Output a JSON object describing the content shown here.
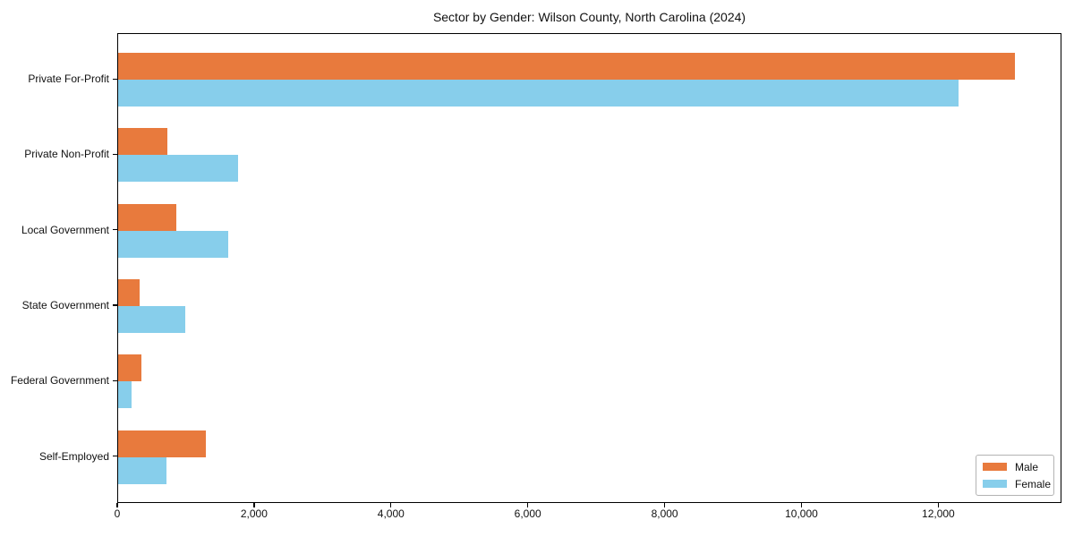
{
  "chart_data": {
    "type": "bar",
    "orientation": "horizontal",
    "title": "Sector by Gender: Wilson County, North Carolina (2024)",
    "categories": [
      "Private For-Profit",
      "Private Non-Profit",
      "Local Government",
      "State Government",
      "Federal Government",
      "Self-Employed"
    ],
    "series": [
      {
        "name": "Male",
        "color": "#e87a3d",
        "values": [
          13100,
          715,
          845,
          310,
          335,
          1285
        ]
      },
      {
        "name": "Female",
        "color": "#87ceeb",
        "values": [
          12280,
          1755,
          1610,
          980,
          200,
          700
        ]
      }
    ],
    "xlabel": "",
    "ylabel": "",
    "xlim": [
      0,
      13800
    ],
    "xticks": [
      0,
      2000,
      4000,
      6000,
      8000,
      10000,
      12000
    ],
    "xtick_labels": [
      "0",
      "2,000",
      "4,000",
      "6,000",
      "8,000",
      "10,000",
      "12,000"
    ],
    "grid": false,
    "legend": {
      "position": "lower right",
      "entries": [
        "Male",
        "Female"
      ]
    },
    "frame": "box",
    "colors": {
      "male": "#e87a3d",
      "female": "#87ceeb",
      "axis": "#000000",
      "text": "#111111",
      "background": "#ffffff"
    }
  }
}
